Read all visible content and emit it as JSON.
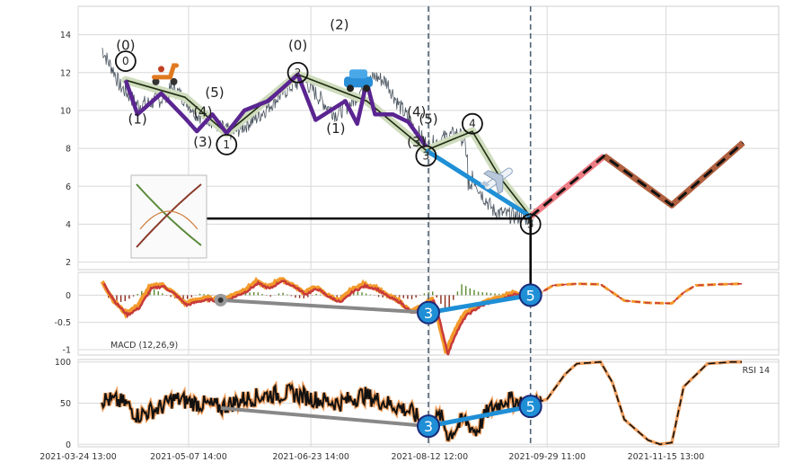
{
  "chart_data": [
    {
      "panel": "price",
      "type": "line",
      "ylim": [
        1.6,
        15.5
      ],
      "yticks": [
        2,
        4,
        6,
        8,
        10,
        12,
        14
      ],
      "grid": true,
      "series": [
        {
          "role": "price",
          "points": [
            [
              0.0,
              13.3
            ],
            [
              0.5,
              12.6
            ],
            [
              1.0,
              12.1
            ],
            [
              1.5,
              11.3
            ],
            [
              2.0,
              11.0
            ],
            [
              3.0,
              10.3
            ],
            [
              4.0,
              10.4
            ],
            [
              5.0,
              10.6
            ],
            [
              6.0,
              11.2
            ],
            [
              7.0,
              10.6
            ],
            [
              8.0,
              9.8
            ],
            [
              9.0,
              9.6
            ],
            [
              10.0,
              9.1
            ],
            [
              11.0,
              8.8
            ],
            [
              12.0,
              9.2
            ],
            [
              13.0,
              9.6
            ],
            [
              14.0,
              10.2
            ],
            [
              15.0,
              10.8
            ],
            [
              16.0,
              11.3
            ],
            [
              17.0,
              11.6
            ],
            [
              18.0,
              10.9
            ],
            [
              19.0,
              10.2
            ],
            [
              19.7,
              9.8
            ],
            [
              21.0,
              10.4
            ],
            [
              22.0,
              11.2
            ],
            [
              23.0,
              11.8
            ],
            [
              24.0,
              11.5
            ],
            [
              25.0,
              10.3
            ],
            [
              26.0,
              9.4
            ],
            [
              27.0,
              8.5
            ],
            [
              27.5,
              8.1
            ],
            [
              28.0,
              8.3
            ],
            [
              29.0,
              8.6
            ],
            [
              30.0,
              8.8
            ],
            [
              30.5,
              8.4
            ],
            [
              31.0,
              6.8
            ],
            [
              32.0,
              5.6
            ],
            [
              33.0,
              4.7
            ],
            [
              34.0,
              4.5
            ],
            [
              35.0,
              4.4
            ],
            [
              36.0,
              4.3
            ],
            [
              36.5,
              4.5
            ]
          ]
        },
        {
          "role": "wave-123",
          "points": [
            [
              2.0,
              11.6
            ],
            [
              7.0,
              10.7
            ],
            [
              10.5,
              8.8
            ],
            [
              16.5,
              11.9
            ],
            [
              22.3,
              10.5
            ],
            [
              27.3,
              7.9
            ],
            [
              31.2,
              8.9
            ],
            [
              33.6,
              6.4
            ],
            [
              36.1,
              4.4
            ]
          ]
        },
        {
          "role": "impulse-up",
          "points": [
            [
              2.0,
              11.6
            ],
            [
              3.0,
              9.8
            ],
            [
              5.0,
              10.9
            ],
            [
              7.0,
              9.6
            ],
            [
              8.0,
              8.9
            ],
            [
              9.3,
              9.8
            ],
            [
              10.5,
              8.8
            ],
            [
              12.0,
              10.0
            ],
            [
              14.0,
              10.5
            ],
            [
              16.5,
              11.9
            ],
            [
              18.0,
              9.5
            ],
            [
              20.5,
              10.5
            ],
            [
              21.5,
              9.3
            ],
            [
              22.3,
              11.5
            ],
            [
              23.0,
              9.8
            ],
            [
              24.5,
              9.8
            ],
            [
              25.8,
              9.4
            ],
            [
              27.3,
              8.1
            ]
          ]
        },
        {
          "role": "projection",
          "points": [
            [
              36.1,
              4.4
            ],
            [
              42.3,
              7.6
            ],
            [
              48.0,
              5.0
            ],
            [
              54.0,
              8.3
            ]
          ]
        }
      ],
      "wave_labels_circled": [
        "0",
        "1",
        "2",
        "3",
        "4",
        "5"
      ],
      "wave_labels_paren": [
        "(0)",
        "(1)",
        "(2)",
        "(3)",
        "(4)",
        "(5)"
      ]
    },
    {
      "panel": "macd",
      "type": "line",
      "ylim": [
        -1.1,
        0.42
      ],
      "yticks": [
        0.0,
        -0.5,
        -1.0
      ],
      "label": "MACD (12,26,9)",
      "divergence_points": [
        [
          10.0,
          -0.09
        ],
        [
          27.5,
          -0.32
        ],
        [
          36.1,
          0.0
        ]
      ],
      "divergence_labels": [
        "3",
        "5"
      ]
    },
    {
      "panel": "rsi",
      "type": "line",
      "ylim": [
        -3,
        103
      ],
      "yticks": [
        0,
        50,
        100
      ],
      "label": "RSI 14",
      "divergence_points": [
        [
          10.0,
          44
        ],
        [
          27.5,
          22
        ],
        [
          36.1,
          46
        ]
      ],
      "divergence_labels": [
        "3",
        "5"
      ]
    }
  ],
  "x_axis": {
    "range": [
      -2,
      57
    ],
    "ticks": [
      {
        "x": -2,
        "label": "2021-03-24 13:00"
      },
      {
        "x": 7.3,
        "label": "2021-05-07 14:00"
      },
      {
        "x": 17.6,
        "label": "2021-06-23 14:00"
      },
      {
        "x": 27.6,
        "label": "2021-08-12 12:00"
      },
      {
        "x": 37.5,
        "label": "2021-09-29 11:00"
      },
      {
        "x": 47.5,
        "label": "2021-11-15 13:00"
      }
    ],
    "vlines": [
      27.5,
      36.1
    ]
  },
  "icons": {
    "scooter": "scooter-icon",
    "car": "car-icon",
    "airplane": "airplane-icon",
    "inset": "chart-thumbnail"
  },
  "colors": {
    "price": "#4a5560",
    "wave_fill": "#cfdcbd",
    "wave_dark": "#1e2b10",
    "impulse": "#5a2591",
    "blue": "#1f8fd6",
    "pink": "#ee7c84",
    "brown": "#b06040",
    "orange": "#f39a2b",
    "red": "#c83a3a",
    "grid": "#d8d8d8"
  }
}
